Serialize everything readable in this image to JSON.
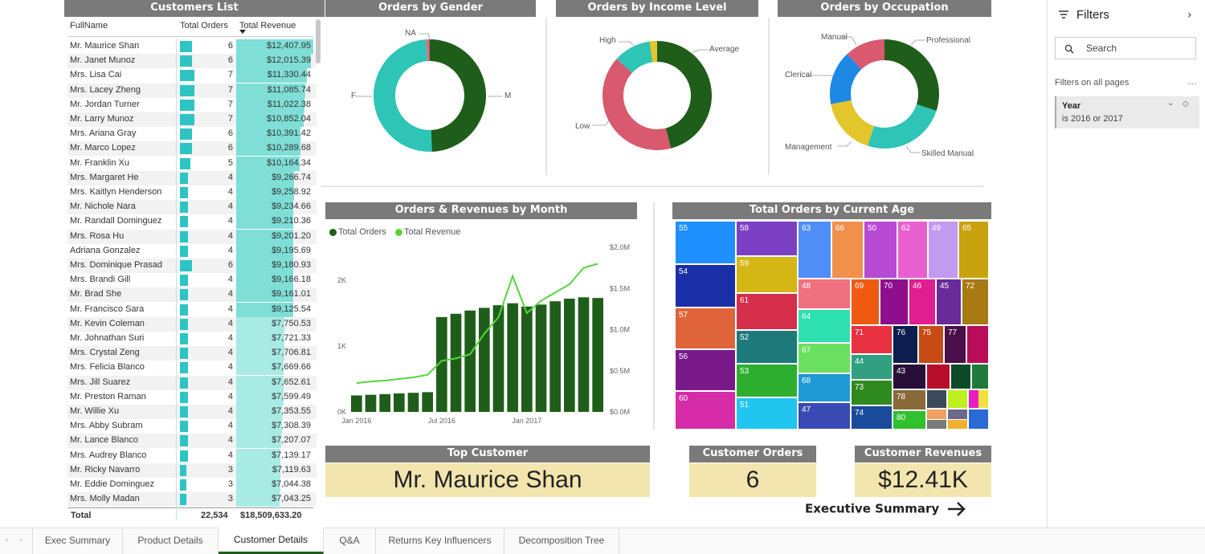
{
  "customers_list": {
    "title": "Customers List",
    "columns": [
      "FullName",
      "Total Orders",
      "Total Revenue"
    ],
    "rows": [
      {
        "name": "Mr. Maurice Shan",
        "orders": 6,
        "revenue": "$12,407.95",
        "rev_num": 12407.95
      },
      {
        "name": "Mr. Janet Munoz",
        "orders": 6,
        "revenue": "$12,015.39",
        "rev_num": 12015.39
      },
      {
        "name": "Mrs. Lisa Cai",
        "orders": 7,
        "revenue": "$11,330.44",
        "rev_num": 11330.44
      },
      {
        "name": "Mrs. Lacey Zheng",
        "orders": 7,
        "revenue": "$11,085.74",
        "rev_num": 11085.74
      },
      {
        "name": "Mr. Jordan Turner",
        "orders": 7,
        "revenue": "$11,022.38",
        "rev_num": 11022.38
      },
      {
        "name": "Mr. Larry Munoz",
        "orders": 7,
        "revenue": "$10,852.04",
        "rev_num": 10852.04
      },
      {
        "name": "Mrs. Ariana Gray",
        "orders": 6,
        "revenue": "$10,391.42",
        "rev_num": 10391.42
      },
      {
        "name": "Mr. Marco Lopez",
        "orders": 6,
        "revenue": "$10,289.68",
        "rev_num": 10289.68
      },
      {
        "name": "Mr. Franklin Xu",
        "orders": 5,
        "revenue": "$10,164.34",
        "rev_num": 10164.34
      },
      {
        "name": "Mrs. Margaret He",
        "orders": 4,
        "revenue": "$9,266.74",
        "rev_num": 9266.74
      },
      {
        "name": "Mrs. Kaitlyn Henderson",
        "orders": 4,
        "revenue": "$9,258.92",
        "rev_num": 9258.92
      },
      {
        "name": "Mr. Nichole Nara",
        "orders": 4,
        "revenue": "$9,234.66",
        "rev_num": 9234.66
      },
      {
        "name": "Mr. Randall Dominguez",
        "orders": 4,
        "revenue": "$9,210.36",
        "rev_num": 9210.36
      },
      {
        "name": "Mrs. Rosa Hu",
        "orders": 4,
        "revenue": "$9,201.20",
        "rev_num": 9201.2
      },
      {
        "name": "Adriana Gonzalez",
        "orders": 4,
        "revenue": "$9,195.69",
        "rev_num": 9195.69
      },
      {
        "name": "Mrs. Dominique Prasad",
        "orders": 6,
        "revenue": "$9,180.93",
        "rev_num": 9180.93
      },
      {
        "name": "Mrs. Brandi Gill",
        "orders": 4,
        "revenue": "$9,166.18",
        "rev_num": 9166.18
      },
      {
        "name": "Mr. Brad She",
        "orders": 4,
        "revenue": "$9,161.01",
        "rev_num": 9161.01
      },
      {
        "name": "Mr. Francisco Sara",
        "orders": 4,
        "revenue": "$9,125.54",
        "rev_num": 9125.54
      },
      {
        "name": "Mr. Kevin Coleman",
        "orders": 4,
        "revenue": "$7,750.53",
        "rev_num": 7750.53
      },
      {
        "name": "Mr. Johnathan Suri",
        "orders": 4,
        "revenue": "$7,721.33",
        "rev_num": 7721.33
      },
      {
        "name": "Mrs. Crystal Zeng",
        "orders": 4,
        "revenue": "$7,706.81",
        "rev_num": 7706.81
      },
      {
        "name": "Mrs. Felicia Blanco",
        "orders": 4,
        "revenue": "$7,669.66",
        "rev_num": 7669.66
      },
      {
        "name": "Mrs. Jill Suarez",
        "orders": 4,
        "revenue": "$7,652.61",
        "rev_num": 7652.61
      },
      {
        "name": "Mr. Preston Raman",
        "orders": 4,
        "revenue": "$7,599.49",
        "rev_num": 7599.49
      },
      {
        "name": "Mr. Willie Xu",
        "orders": 4,
        "revenue": "$7,353.55",
        "rev_num": 7353.55
      },
      {
        "name": "Mrs. Abby Subram",
        "orders": 4,
        "revenue": "$7,308.39",
        "rev_num": 7308.39
      },
      {
        "name": "Mr. Lance Blanco",
        "orders": 4,
        "revenue": "$7,207.07",
        "rev_num": 7207.07
      },
      {
        "name": "Mrs. Audrey Blanco",
        "orders": 4,
        "revenue": "$7,139.17",
        "rev_num": 7139.17
      },
      {
        "name": "Mr. Ricky Navarro",
        "orders": 3,
        "revenue": "$7,119.63",
        "rev_num": 7119.63
      },
      {
        "name": "Mr. Eddie Dominguez",
        "orders": 3,
        "revenue": "$7,044.38",
        "rev_num": 7044.38
      },
      {
        "name": "Mrs. Molly Madan",
        "orders": 3,
        "revenue": "$7,043.25",
        "rev_num": 7043.25
      }
    ],
    "total_label": "Total",
    "total_orders": "22,534",
    "total_revenue": "$18,509,633.20"
  },
  "gender": {
    "title": "Orders by Gender",
    "labels": [
      "NA",
      "F",
      "M"
    ]
  },
  "income": {
    "title": "Orders by Income Level",
    "labels": [
      "High",
      "Average",
      "Low"
    ]
  },
  "occupation": {
    "title": "Orders by Occupation",
    "labels": [
      "Manual",
      "Professional",
      "Clerical",
      "Management",
      "Skilled Manual"
    ]
  },
  "monthly": {
    "title": "Orders & Revenues by Month",
    "legend": [
      "Total Orders",
      "Total Revenue"
    ]
  },
  "age": {
    "title": "Total Orders by Current Age"
  },
  "top_customer": {
    "title": "Top Customer",
    "value": "Mr. Maurice Shan"
  },
  "customer_orders": {
    "title": "Customer Orders",
    "value": "6"
  },
  "customer_revenues": {
    "title": "Customer Revenues",
    "value": "$12.41K"
  },
  "exec_link": "Executive Summary",
  "filters": {
    "title": "Filters",
    "search_placeholder": "Search",
    "section": "Filters on all pages",
    "card_title": "Year",
    "card_value": "is 2016 or 2017"
  },
  "tabs": [
    "Exec Summary",
    "Product Details",
    "Customer Details",
    "Q&A",
    "Returns Key Influencers",
    "Decomposition Tree"
  ],
  "active_tab": "Customer Details",
  "colors": {
    "header": "#7a7a7a",
    "dark_green": "#1f5e1a",
    "teal": "#2ec4b6",
    "card": "#f3e5ae"
  },
  "chart_data": [
    {
      "type": "pie",
      "title": "Orders by Gender",
      "labels": [
        "NA",
        "F",
        "M"
      ],
      "values": [
        1,
        49.5,
        49.5
      ]
    },
    {
      "type": "pie",
      "title": "Orders by Income Level",
      "labels": [
        "Average",
        "Low",
        "High"
      ],
      "values": [
        45,
        40,
        13
      ]
    },
    {
      "type": "pie",
      "title": "Orders by Occupation",
      "labels": [
        "Professional",
        "Skilled Manual",
        "Management",
        "Clerical",
        "Manual"
      ],
      "values": [
        30,
        25,
        17,
        16,
        12
      ]
    },
    {
      "type": "bar",
      "title": "Orders & Revenues by Month",
      "categories": [
        "Jan 2016",
        "",
        "",
        "",
        "",
        "",
        "Jul 2016",
        "",
        "",
        "",
        "",
        "",
        "Jan 2017",
        "",
        "",
        "",
        "",
        ""
      ],
      "series": [
        {
          "name": "Total Orders",
          "values": [
            250,
            260,
            270,
            280,
            290,
            300,
            1440,
            1490,
            1540,
            1580,
            1620,
            1650,
            1600,
            1630,
            1680,
            1720,
            1740,
            1730
          ],
          "axis": "left"
        },
        {
          "name": "Total Revenue",
          "values": [
            0.35,
            0.37,
            0.38,
            0.4,
            0.42,
            0.45,
            0.62,
            0.65,
            0.7,
            0.95,
            1.15,
            1.65,
            1.2,
            1.35,
            1.45,
            1.55,
            1.75,
            1.8
          ],
          "axis": "right"
        }
      ],
      "y_ticks_left": [
        "0K",
        "1K",
        "2K"
      ],
      "y_ticks_right": [
        "$0.0M",
        "$0.5M",
        "$1.0M",
        "$1.5M",
        "$2.0M"
      ],
      "x_ticks": [
        "Jan 2016",
        "Jul 2016",
        "Jan 2017"
      ],
      "ylim": [
        0,
        2500
      ],
      "ylim_right": [
        0,
        2.0
      ]
    },
    {
      "type": "heatmap",
      "title": "Total Orders by Current Age",
      "labels": [
        "55",
        "54",
        "57",
        "56",
        "60",
        "58",
        "59",
        "61",
        "52",
        "53",
        "51",
        "63",
        "66",
        "50",
        "62",
        "49",
        "65",
        "48",
        "69",
        "70",
        "46",
        "45",
        "72",
        "64",
        "71",
        "76",
        "75",
        "77",
        "67",
        "44",
        "43",
        "73",
        "78",
        "68",
        "74",
        "47",
        "80"
      ]
    }
  ]
}
